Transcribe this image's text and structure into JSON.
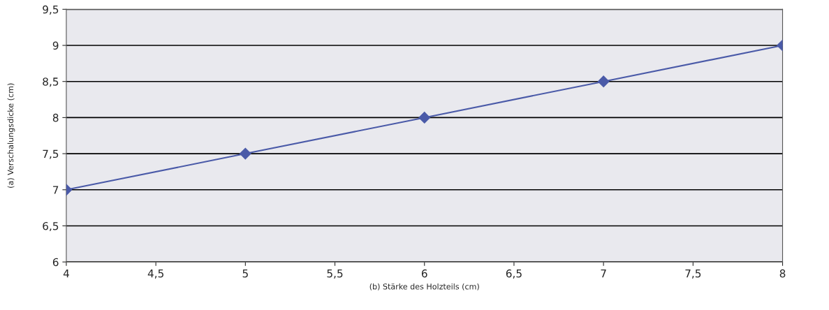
{
  "chart_data": {
    "type": "line",
    "xlabel": "(b) Stärke des Holzteils (cm)",
    "ylabel": "(a) Verschalungsdicke (cm)",
    "x": [
      4,
      5,
      6,
      7,
      8
    ],
    "series": [
      {
        "color": "#4a5aa8",
        "values": [
          7,
          7.5,
          8,
          8.5,
          9
        ]
      }
    ],
    "xlim": [
      4,
      8
    ],
    "ylim": [
      6,
      9.5
    ],
    "xticks": [
      4,
      {
        "value": 4.5,
        "label": "4,5"
      },
      5,
      {
        "value": 5.5,
        "label": "5,5"
      },
      6,
      {
        "value": 6.5,
        "label": "6,5"
      },
      7,
      {
        "value": 7.5,
        "label": "7,5"
      },
      8
    ],
    "yticks": [
      6,
      {
        "value": 6.5,
        "label": "6,5"
      },
      7,
      {
        "value": 7.5,
        "label": "7,5"
      },
      8,
      {
        "value": 8.5,
        "label": "8,5"
      },
      9,
      {
        "value": 9.5,
        "label": "9,5"
      }
    ],
    "grid": "y",
    "marker": "diamond",
    "line_style": "solid"
  }
}
